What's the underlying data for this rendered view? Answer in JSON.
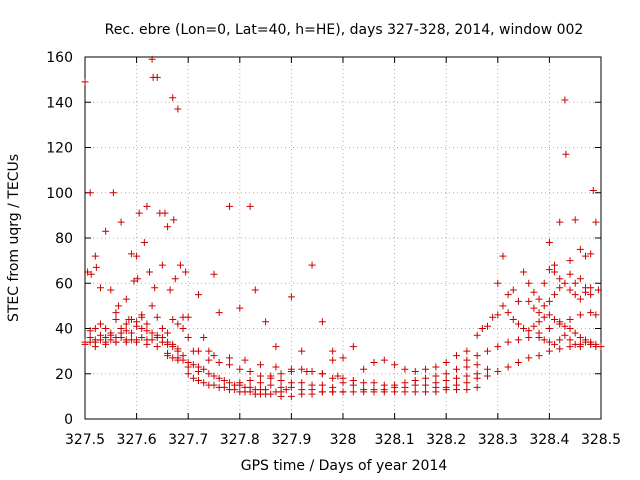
{
  "chart_data": {
    "type": "scatter",
    "title": "Rec. ebre (Lon=0, Lat=40, h=HE), days 327-328, 2014, window 002",
    "xlabel": "GPS time / Days of year 2014",
    "ylabel": "STEC from uqrg / TECUs",
    "xlim": [
      327.5,
      328.5
    ],
    "ylim": [
      0,
      160
    ],
    "xticks": [
      327.5,
      327.6,
      327.7,
      327.8,
      327.9,
      328.0,
      328.1,
      328.2,
      328.3,
      328.4,
      328.5
    ],
    "xtick_labels": [
      "327.5",
      "327.6",
      "327.7",
      "327.8",
      "327.9",
      "328",
      "328.1",
      "328.2",
      "328.3",
      "328.4",
      "328.5"
    ],
    "yticks": [
      0,
      20,
      40,
      60,
      80,
      100,
      120,
      140,
      160
    ],
    "ytick_labels": [
      "0",
      "20",
      "40",
      "60",
      "80",
      "100",
      "120",
      "140",
      "160"
    ],
    "grid": true,
    "marker": "plus",
    "color": "#cc0000",
    "points": [
      [
        327.5,
        149
      ],
      [
        327.505,
        65
      ],
      [
        327.51,
        100
      ],
      [
        327.512,
        64
      ],
      [
        327.52,
        72
      ],
      [
        327.522,
        67
      ],
      [
        327.53,
        58
      ],
      [
        327.54,
        83
      ],
      [
        327.55,
        57
      ],
      [
        327.555,
        100
      ],
      [
        327.56,
        47
      ],
      [
        327.565,
        50
      ],
      [
        327.57,
        87
      ],
      [
        327.58,
        53
      ],
      [
        327.585,
        44
      ],
      [
        327.59,
        73
      ],
      [
        327.595,
        61
      ],
      [
        327.6,
        72
      ],
      [
        327.602,
        62
      ],
      [
        327.605,
        91
      ],
      [
        327.61,
        45
      ],
      [
        327.615,
        78
      ],
      [
        327.62,
        94
      ],
      [
        327.625,
        65
      ],
      [
        327.63,
        159
      ],
      [
        327.632,
        151
      ],
      [
        327.635,
        58
      ],
      [
        327.64,
        151
      ],
      [
        327.645,
        91
      ],
      [
        327.65,
        68
      ],
      [
        327.655,
        91
      ],
      [
        327.66,
        85
      ],
      [
        327.665,
        57
      ],
      [
        327.67,
        142
      ],
      [
        327.672,
        88
      ],
      [
        327.675,
        62
      ],
      [
        327.68,
        137
      ],
      [
        327.685,
        68
      ],
      [
        327.69,
        45
      ],
      [
        327.695,
        65
      ],
      [
        327.7,
        45
      ],
      [
        327.71,
        30
      ],
      [
        327.72,
        55
      ],
      [
        327.73,
        36
      ],
      [
        327.74,
        30
      ],
      [
        327.75,
        64
      ],
      [
        327.76,
        47
      ],
      [
        327.78,
        94
      ],
      [
        327.8,
        49
      ],
      [
        327.82,
        94
      ],
      [
        327.83,
        57
      ],
      [
        327.85,
        43
      ],
      [
        327.87,
        32
      ],
      [
        327.9,
        54
      ],
      [
        327.92,
        30
      ],
      [
        327.94,
        68
      ],
      [
        327.96,
        43
      ],
      [
        327.98,
        30
      ],
      [
        327.5,
        34
      ],
      [
        327.51,
        34
      ],
      [
        327.52,
        34
      ],
      [
        327.53,
        35
      ],
      [
        327.54,
        34
      ],
      [
        327.55,
        35
      ],
      [
        327.56,
        34
      ],
      [
        327.57,
        36
      ],
      [
        327.58,
        35
      ],
      [
        327.59,
        35
      ],
      [
        327.6,
        35
      ],
      [
        327.61,
        36
      ],
      [
        327.62,
        35
      ],
      [
        327.63,
        35
      ],
      [
        327.64,
        36
      ],
      [
        327.65,
        34
      ],
      [
        327.66,
        33
      ],
      [
        327.67,
        32
      ],
      [
        327.68,
        31
      ],
      [
        327.69,
        28
      ],
      [
        327.51,
        39
      ],
      [
        327.52,
        40
      ],
      [
        327.53,
        42
      ],
      [
        327.54,
        40
      ],
      [
        327.55,
        38
      ],
      [
        327.56,
        44
      ],
      [
        327.57,
        40
      ],
      [
        327.58,
        42
      ],
      [
        327.59,
        44
      ],
      [
        327.6,
        43
      ],
      [
        327.61,
        46
      ],
      [
        327.62,
        42
      ],
      [
        327.63,
        50
      ],
      [
        327.64,
        45
      ],
      [
        327.65,
        40
      ],
      [
        327.66,
        38
      ],
      [
        327.67,
        44
      ],
      [
        327.68,
        42
      ],
      [
        327.69,
        40
      ],
      [
        327.7,
        36
      ],
      [
        327.51,
        36
      ],
      [
        327.52,
        35
      ],
      [
        327.53,
        37
      ],
      [
        327.54,
        36
      ],
      [
        327.55,
        37
      ],
      [
        327.56,
        36
      ],
      [
        327.57,
        38
      ],
      [
        327.58,
        39
      ],
      [
        327.59,
        38
      ],
      [
        327.6,
        41
      ],
      [
        327.61,
        40
      ],
      [
        327.62,
        39
      ],
      [
        327.63,
        38
      ],
      [
        327.64,
        37
      ],
      [
        327.65,
        36
      ],
      [
        327.66,
        34
      ],
      [
        327.67,
        33
      ],
      [
        327.68,
        30
      ],
      [
        327.5,
        33
      ],
      [
        327.52,
        32
      ],
      [
        327.54,
        33
      ],
      [
        327.56,
        34
      ],
      [
        327.58,
        34
      ],
      [
        327.6,
        34
      ],
      [
        327.62,
        33
      ],
      [
        327.64,
        32
      ],
      [
        327.66,
        29
      ],
      [
        327.68,
        26
      ],
      [
        327.7,
        23
      ],
      [
        327.72,
        21
      ],
      [
        327.66,
        28
      ],
      [
        327.67,
        27
      ],
      [
        327.68,
        27
      ],
      [
        327.69,
        26
      ],
      [
        327.7,
        25
      ],
      [
        327.71,
        24
      ],
      [
        327.72,
        23
      ],
      [
        327.73,
        22
      ],
      [
        327.74,
        20
      ],
      [
        327.75,
        19
      ],
      [
        327.76,
        18
      ],
      [
        327.77,
        17
      ],
      [
        327.78,
        16
      ],
      [
        327.79,
        15
      ],
      [
        327.8,
        15
      ],
      [
        327.81,
        14
      ],
      [
        327.82,
        14
      ],
      [
        327.83,
        13
      ],
      [
        327.84,
        13
      ],
      [
        327.85,
        13
      ],
      [
        327.7,
        20
      ],
      [
        327.71,
        18
      ],
      [
        327.72,
        17
      ],
      [
        327.73,
        16
      ],
      [
        327.74,
        15
      ],
      [
        327.75,
        15
      ],
      [
        327.76,
        14
      ],
      [
        327.77,
        14
      ],
      [
        327.78,
        13
      ],
      [
        327.79,
        13
      ],
      [
        327.8,
        12
      ],
      [
        327.81,
        12
      ],
      [
        327.82,
        12
      ],
      [
        327.83,
        11
      ],
      [
        327.84,
        11
      ],
      [
        327.85,
        11
      ],
      [
        327.86,
        11
      ],
      [
        327.87,
        12
      ],
      [
        327.88,
        12
      ],
      [
        327.89,
        13
      ],
      [
        327.74,
        26
      ],
      [
        327.76,
        25
      ],
      [
        327.78,
        24
      ],
      [
        327.8,
        22
      ],
      [
        327.82,
        21
      ],
      [
        327.84,
        19
      ],
      [
        327.86,
        18
      ],
      [
        327.88,
        17
      ],
      [
        327.9,
        16
      ],
      [
        327.92,
        16
      ],
      [
        327.94,
        15
      ],
      [
        327.96,
        15
      ],
      [
        327.98,
        14
      ],
      [
        327.72,
        30
      ],
      [
        327.75,
        28
      ],
      [
        327.78,
        27
      ],
      [
        327.81,
        26
      ],
      [
        327.84,
        24
      ],
      [
        327.87,
        23
      ],
      [
        327.9,
        22
      ],
      [
        327.93,
        21
      ],
      [
        327.96,
        20
      ],
      [
        327.99,
        19
      ],
      [
        327.8,
        16
      ],
      [
        327.82,
        17
      ],
      [
        327.84,
        16
      ],
      [
        327.86,
        15
      ],
      [
        327.88,
        14
      ],
      [
        327.9,
        14
      ],
      [
        327.92,
        13
      ],
      [
        327.94,
        13
      ],
      [
        327.96,
        12
      ],
      [
        327.98,
        12
      ],
      [
        328.0,
        12
      ],
      [
        327.86,
        19
      ],
      [
        327.88,
        20
      ],
      [
        327.9,
        21
      ],
      [
        327.92,
        22
      ],
      [
        327.94,
        21
      ],
      [
        327.96,
        20
      ],
      [
        327.98,
        18
      ],
      [
        328.0,
        16
      ],
      [
        328.02,
        15
      ],
      [
        327.88,
        10
      ],
      [
        327.9,
        10
      ],
      [
        327.92,
        11
      ],
      [
        327.94,
        11
      ],
      [
        327.96,
        12
      ],
      [
        327.98,
        12
      ],
      [
        328.0,
        12
      ],
      [
        328.02,
        12
      ],
      [
        328.04,
        12
      ],
      [
        328.06,
        12
      ],
      [
        328.08,
        12
      ],
      [
        328.1,
        12
      ],
      [
        328.12,
        12
      ],
      [
        328.14,
        12
      ],
      [
        328.16,
        12
      ],
      [
        328.18,
        12
      ],
      [
        328.2,
        13
      ],
      [
        328.22,
        13
      ],
      [
        328.24,
        13
      ],
      [
        328.26,
        14
      ],
      [
        327.98,
        26
      ],
      [
        328.0,
        27
      ],
      [
        328.02,
        32
      ],
      [
        328.04,
        22
      ],
      [
        328.06,
        25
      ],
      [
        328.08,
        26
      ],
      [
        328.1,
        24
      ],
      [
        328.12,
        22
      ],
      [
        328.14,
        21
      ],
      [
        328.16,
        22
      ],
      [
        328.18,
        23
      ],
      [
        328.2,
        25
      ],
      [
        328.22,
        28
      ],
      [
        328.24,
        30
      ],
      [
        328.0,
        18
      ],
      [
        328.02,
        17
      ],
      [
        328.04,
        16
      ],
      [
        328.06,
        16
      ],
      [
        328.08,
        15
      ],
      [
        328.1,
        15
      ],
      [
        328.12,
        16
      ],
      [
        328.14,
        17
      ],
      [
        328.16,
        18
      ],
      [
        328.18,
        19
      ],
      [
        328.2,
        20
      ],
      [
        328.22,
        22
      ],
      [
        328.24,
        23
      ],
      [
        328.26,
        24
      ],
      [
        328.04,
        13
      ],
      [
        328.06,
        13
      ],
      [
        328.08,
        13
      ],
      [
        328.1,
        14
      ],
      [
        328.12,
        14
      ],
      [
        328.14,
        15
      ],
      [
        328.16,
        15
      ],
      [
        328.18,
        16
      ],
      [
        328.2,
        17
      ],
      [
        328.22,
        18
      ],
      [
        328.24,
        19
      ],
      [
        328.26,
        20
      ],
      [
        328.28,
        22
      ],
      [
        328.18,
        14
      ],
      [
        328.2,
        14
      ],
      [
        328.22,
        15
      ],
      [
        328.24,
        16
      ],
      [
        328.26,
        18
      ],
      [
        328.28,
        19
      ],
      [
        328.3,
        21
      ],
      [
        328.32,
        23
      ],
      [
        328.34,
        25
      ],
      [
        328.36,
        27
      ],
      [
        328.38,
        28
      ],
      [
        328.4,
        30
      ],
      [
        328.42,
        31
      ],
      [
        328.44,
        32
      ],
      [
        328.46,
        33
      ],
      [
        328.48,
        33
      ],
      [
        328.24,
        26
      ],
      [
        328.26,
        28
      ],
      [
        328.28,
        30
      ],
      [
        328.3,
        32
      ],
      [
        328.32,
        34
      ],
      [
        328.34,
        35
      ],
      [
        328.36,
        36
      ],
      [
        328.38,
        38
      ],
      [
        328.4,
        40
      ],
      [
        328.42,
        42
      ],
      [
        328.44,
        44
      ],
      [
        328.46,
        46
      ],
      [
        328.48,
        47
      ],
      [
        328.26,
        37
      ],
      [
        328.27,
        40
      ],
      [
        328.28,
        41
      ],
      [
        328.29,
        45
      ],
      [
        328.3,
        46
      ],
      [
        328.31,
        50
      ],
      [
        328.32,
        47
      ],
      [
        328.33,
        44
      ],
      [
        328.34,
        42
      ],
      [
        328.35,
        40
      ],
      [
        328.36,
        39
      ],
      [
        328.37,
        41
      ],
      [
        328.38,
        43
      ],
      [
        328.39,
        45
      ],
      [
        328.4,
        46
      ],
      [
        328.41,
        44
      ],
      [
        328.42,
        43
      ],
      [
        328.43,
        41
      ],
      [
        328.44,
        40
      ],
      [
        328.45,
        38
      ],
      [
        328.46,
        36
      ],
      [
        328.47,
        35
      ],
      [
        328.48,
        34
      ],
      [
        328.49,
        33
      ],
      [
        328.3,
        60
      ],
      [
        328.31,
        72
      ],
      [
        328.32,
        55
      ],
      [
        328.33,
        57
      ],
      [
        328.34,
        52
      ],
      [
        328.35,
        65
      ],
      [
        328.36,
        60
      ],
      [
        328.37,
        56
      ],
      [
        328.38,
        53
      ],
      [
        328.39,
        60
      ],
      [
        328.4,
        66
      ],
      [
        328.41,
        68
      ],
      [
        328.42,
        87
      ],
      [
        328.43,
        141
      ],
      [
        328.432,
        117
      ],
      [
        328.44,
        70
      ],
      [
        328.45,
        88
      ],
      [
        328.46,
        62
      ],
      [
        328.47,
        58
      ],
      [
        328.48,
        73
      ],
      [
        328.485,
        101
      ],
      [
        328.49,
        87
      ],
      [
        328.495,
        57
      ],
      [
        328.36,
        52
      ],
      [
        328.37,
        49
      ],
      [
        328.38,
        47
      ],
      [
        328.39,
        50
      ],
      [
        328.4,
        52
      ],
      [
        328.41,
        55
      ],
      [
        328.42,
        58
      ],
      [
        328.43,
        60
      ],
      [
        328.44,
        57
      ],
      [
        328.45,
        55
      ],
      [
        328.46,
        53
      ],
      [
        328.47,
        56
      ],
      [
        328.48,
        55
      ],
      [
        328.49,
        46
      ],
      [
        328.5,
        32
      ],
      [
        328.38,
        36
      ],
      [
        328.39,
        35
      ],
      [
        328.4,
        34
      ],
      [
        328.41,
        33
      ],
      [
        328.42,
        35
      ],
      [
        328.43,
        37
      ],
      [
        328.44,
        35
      ],
      [
        328.45,
        33
      ],
      [
        328.46,
        32
      ],
      [
        328.47,
        34
      ],
      [
        328.48,
        33
      ],
      [
        328.49,
        32
      ],
      [
        328.4,
        78
      ],
      [
        328.41,
        65
      ],
      [
        328.42,
        62
      ],
      [
        328.44,
        64
      ],
      [
        328.45,
        60
      ],
      [
        328.46,
        75
      ],
      [
        328.47,
        72
      ],
      [
        328.48,
        58
      ]
    ]
  }
}
